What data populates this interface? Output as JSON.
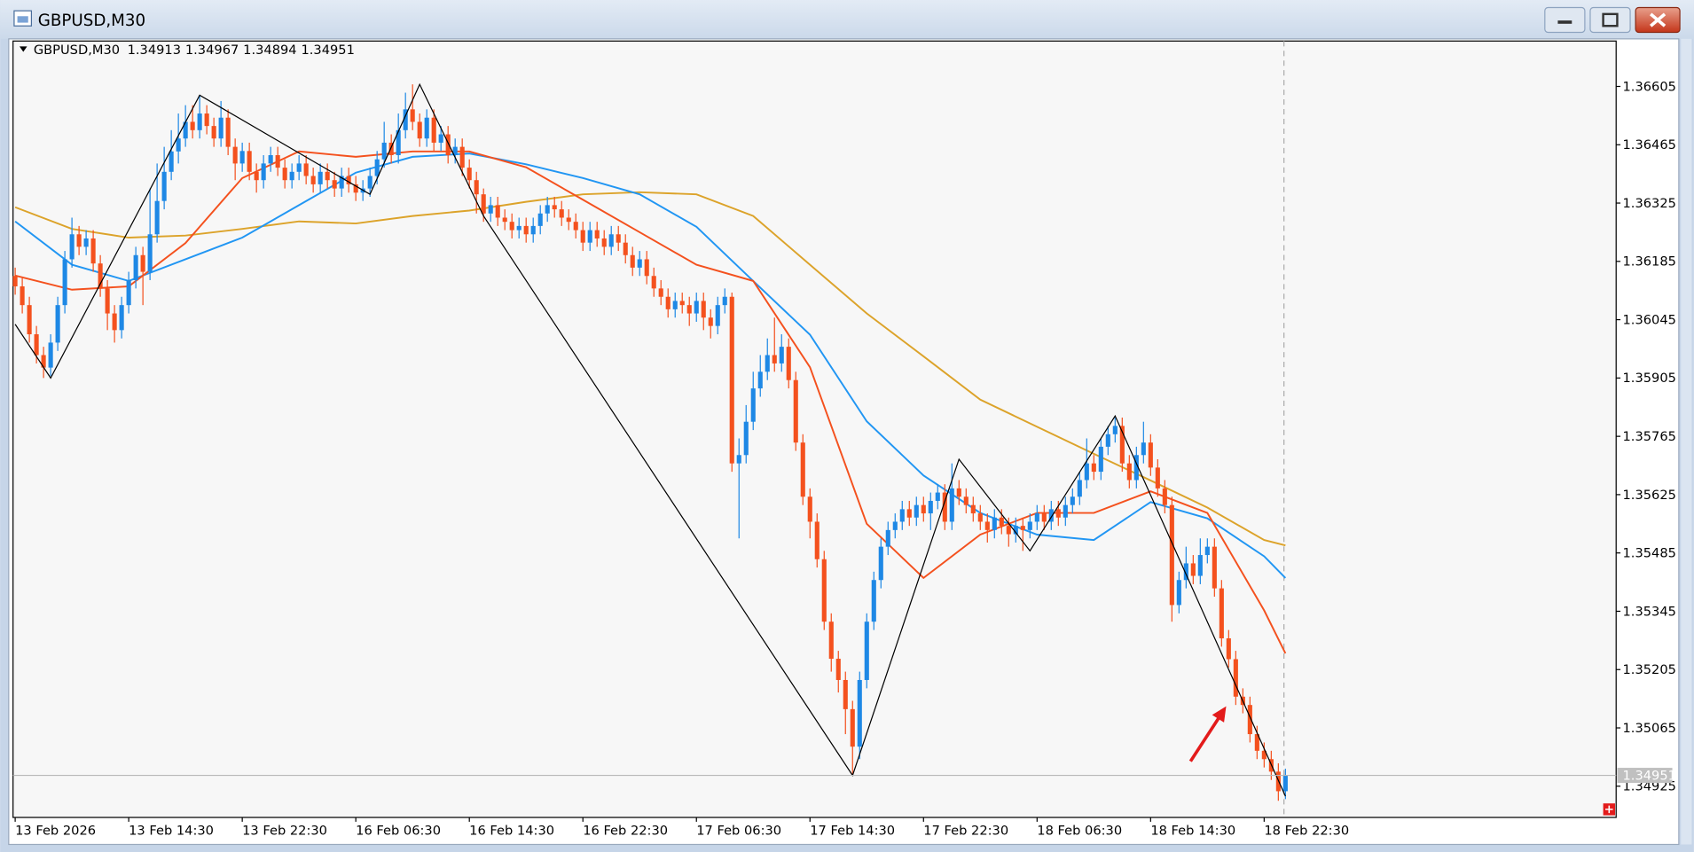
{
  "chart_data": {
    "type": "candlestick",
    "title": "GBPUSD,M30",
    "up_color": "#1e88e5",
    "down_color": "#f4511e",
    "xlim": [
      -0.3,
      225.6
    ],
    "ylim": [
      1.3485,
      1.36714
    ],
    "xticks": [
      {
        "value": 0,
        "label": "13 Feb 2026"
      },
      {
        "value": 16,
        "label": "13 Feb 14:30"
      },
      {
        "value": 32,
        "label": "13 Feb 22:30"
      },
      {
        "value": 48,
        "label": "16 Feb 06:30"
      },
      {
        "value": 64,
        "label": "16 Feb 14:30"
      },
      {
        "value": 80,
        "label": "16 Feb 22:30"
      },
      {
        "value": 96,
        "label": "17 Feb 06:30"
      },
      {
        "value": 112,
        "label": "17 Feb 14:30"
      },
      {
        "value": 128,
        "label": "17 Feb 22:30"
      },
      {
        "value": 144,
        "label": "18 Feb 06:30"
      },
      {
        "value": 160,
        "label": "18 Feb 14:30"
      },
      {
        "value": 176,
        "label": "18 Feb 22:30"
      }
    ],
    "yticks": [
      1.36605,
      1.36465,
      1.36325,
      1.36185,
      1.36045,
      1.35905,
      1.35765,
      1.35625,
      1.35485,
      1.35345,
      1.35205,
      1.35065,
      1.34925
    ],
    "candles": {
      "open": [
        1.3615,
        1.36125,
        1.3608,
        1.3601,
        1.3596,
        1.3593,
        1.3599,
        1.3608,
        1.3619,
        1.3625,
        1.3622,
        1.3624,
        1.3618,
        1.3612,
        1.3606,
        1.3602,
        1.3608,
        1.3614,
        1.362,
        1.3616,
        1.3625,
        1.3633,
        1.364,
        1.36449,
        1.3648,
        1.3652,
        1.365,
        1.3654,
        1.3651,
        1.3648,
        1.3653,
        1.3646,
        1.3642,
        1.3645,
        1.364,
        1.3638,
        1.3642,
        1.3644,
        1.3641,
        1.3638,
        1.364,
        1.3642,
        1.3639,
        1.3637,
        1.364,
        1.3638,
        1.3636,
        1.3639,
        1.3637,
        1.3635,
        1.3636,
        1.3639,
        1.3643,
        1.3647,
        1.3644,
        1.365,
        1.3655,
        1.3652,
        1.3648,
        1.3653,
        1.3647,
        1.3649,
        1.3644,
        1.3646,
        1.3641,
        1.3638,
        1.36346,
        1.363,
        1.3632,
        1.3629,
        1.3628,
        1.3626,
        1.3627,
        1.3625,
        1.3627,
        1.363,
        1.3632,
        1.3631,
        1.3629,
        1.3628,
        1.3626,
        1.3623,
        1.3626,
        1.3624,
        1.3622,
        1.3625,
        1.3623,
        1.362,
        1.3617,
        1.3619,
        1.3615,
        1.3612,
        1.361,
        1.3607,
        1.3609,
        1.3608,
        1.3606,
        1.3609,
        1.3605,
        1.3603,
        1.3608,
        1.361,
        1.357,
        1.3572,
        1.358,
        1.3588,
        1.3592,
        1.3596,
        1.3594,
        1.3598,
        1.359,
        1.3575,
        1.3562,
        1.3556,
        1.3547,
        1.3532,
        1.35231,
        1.3518,
        1.3511,
        1.3502,
        1.3518,
        1.3532,
        1.3542,
        1.355,
        1.3554,
        1.3556,
        1.3559,
        1.3557,
        1.356,
        1.3558,
        1.3561,
        1.3563,
        1.3556,
        1.3564,
        1.3562,
        1.356,
        1.3558,
        1.3556,
        1.3554,
        1.3557,
        1.3555,
        1.3553,
        1.3555,
        1.3554,
        1.3556,
        1.3558,
        1.3556,
        1.3559,
        1.3557,
        1.356,
        1.3562,
        1.3566,
        1.357,
        1.3568,
        1.3574,
        1.3577,
        1.3579,
        1.357,
        1.3566,
        1.3572,
        1.3575,
        1.3569,
        1.3564,
        1.356,
        1.3536,
        1.3542,
        1.3546,
        1.3543,
        1.3548,
        1.355,
        1.354,
        1.3528,
        1.3523,
        1.3514,
        1.3512,
        1.3505,
        1.3501,
        1.3499,
        1.3496,
        1.34913
      ],
      "high": [
        1.3617,
        1.36145,
        1.361,
        1.3603,
        1.3598,
        1.3601,
        1.361,
        1.3621,
        1.3629,
        1.3627,
        1.3626,
        1.3626,
        1.362,
        1.3614,
        1.3608,
        1.361,
        1.3616,
        1.3622,
        1.3622,
        1.3636,
        1.3642,
        1.3646,
        1.365,
        1.3654,
        1.3656,
        1.3656,
        1.36584,
        1.3656,
        1.3653,
        1.3657,
        1.3655,
        1.3648,
        1.3647,
        1.3647,
        1.3642,
        1.3644,
        1.3646,
        1.3646,
        1.3643,
        1.3642,
        1.3644,
        1.3644,
        1.3641,
        1.3642,
        1.3642,
        1.364,
        1.3641,
        1.3641,
        1.3639,
        1.3638,
        1.3641,
        1.3645,
        1.3652,
        1.3649,
        1.3654,
        1.3659,
        1.3661,
        1.3654,
        1.3655,
        1.3655,
        1.3651,
        1.3651,
        1.3648,
        1.3648,
        1.3643,
        1.364,
        1.3636,
        1.3634,
        1.3634,
        1.3631,
        1.363,
        1.3629,
        1.3629,
        1.3629,
        1.3632,
        1.3634,
        1.3634,
        1.3633,
        1.3631,
        1.363,
        1.3628,
        1.3628,
        1.3628,
        1.3626,
        1.3627,
        1.3627,
        1.3625,
        1.3622,
        1.3621,
        1.3621,
        1.3617,
        1.3614,
        1.3612,
        1.3611,
        1.3611,
        1.361,
        1.3611,
        1.3611,
        1.3607,
        1.361,
        1.3612,
        1.3611,
        1.3576,
        1.3584,
        1.3592,
        1.3596,
        1.36,
        1.3605,
        1.3601,
        1.36,
        1.3592,
        1.3577,
        1.3564,
        1.3558,
        1.3549,
        1.3534,
        1.3525,
        1.352,
        1.3513,
        1.352,
        1.3534,
        1.3544,
        1.3552,
        1.3556,
        1.3558,
        1.3561,
        1.3561,
        1.3562,
        1.3562,
        1.3563,
        1.3565,
        1.3565,
        1.357,
        1.3566,
        1.3564,
        1.3562,
        1.356,
        1.3558,
        1.3559,
        1.3559,
        1.3557,
        1.3557,
        1.3557,
        1.3558,
        1.356,
        1.356,
        1.3561,
        1.3561,
        1.3562,
        1.3564,
        1.3568,
        1.3576,
        1.3572,
        1.3576,
        1.3579,
        1.3581,
        1.3581,
        1.3572,
        1.3574,
        1.358,
        1.3577,
        1.3571,
        1.3566,
        1.3562,
        1.3544,
        1.355,
        1.3548,
        1.3552,
        1.3552,
        1.3552,
        1.3542,
        1.353,
        1.3525,
        1.3516,
        1.3514,
        1.3507,
        1.3503,
        1.3501,
        1.3498,
        1.34967
      ],
      "low": [
        1.36105,
        1.3606,
        1.3599,
        1.3594,
        1.35905,
        1.3591,
        1.3597,
        1.3606,
        1.3617,
        1.362,
        1.362,
        1.3616,
        1.361,
        1.3602,
        1.3599,
        1.36,
        1.3606,
        1.3612,
        1.3608,
        1.3614,
        1.3623,
        1.3631,
        1.3638,
        1.3642,
        1.3646,
        1.3648,
        1.3648,
        1.3649,
        1.3646,
        1.3646,
        1.3644,
        1.3638,
        1.364,
        1.3638,
        1.3635,
        1.3636,
        1.364,
        1.3639,
        1.3636,
        1.3636,
        1.3638,
        1.3637,
        1.3635,
        1.3635,
        1.3636,
        1.3634,
        1.3634,
        1.3635,
        1.3633,
        1.3633,
        1.3634,
        1.3637,
        1.3641,
        1.3642,
        1.3642,
        1.3648,
        1.365,
        1.3646,
        1.3646,
        1.3645,
        1.3645,
        1.3642,
        1.3642,
        1.3639,
        1.3636,
        1.363,
        1.3628,
        1.3628,
        1.3627,
        1.3626,
        1.3624,
        1.3624,
        1.3623,
        1.3623,
        1.3625,
        1.3628,
        1.3629,
        1.3627,
        1.3626,
        1.3624,
        1.3621,
        1.3621,
        1.3622,
        1.362,
        1.362,
        1.3621,
        1.3618,
        1.3615,
        1.3615,
        1.3613,
        1.361,
        1.3608,
        1.3605,
        1.3605,
        1.3606,
        1.3603,
        1.3604,
        1.3602,
        1.36,
        1.3601,
        1.3606,
        1.3568,
        1.3552,
        1.357,
        1.3578,
        1.3586,
        1.359,
        1.3592,
        1.3592,
        1.3588,
        1.3573,
        1.356,
        1.3552,
        1.3545,
        1.353,
        1.352,
        1.3515,
        1.3505,
        1.3495,
        1.3499,
        1.3516,
        1.353,
        1.354,
        1.3548,
        1.3552,
        1.3554,
        1.3555,
        1.3555,
        1.3556,
        1.3554,
        1.3559,
        1.3554,
        1.3554,
        1.356,
        1.3558,
        1.3556,
        1.3554,
        1.3551,
        1.3552,
        1.3553,
        1.355,
        1.3551,
        1.3549,
        1.3552,
        1.3554,
        1.3554,
        1.3554,
        1.3555,
        1.3555,
        1.3558,
        1.356,
        1.3564,
        1.3566,
        1.3566,
        1.3572,
        1.3575,
        1.3568,
        1.3564,
        1.3564,
        1.357,
        1.3567,
        1.3562,
        1.3558,
        1.3532,
        1.3534,
        1.354,
        1.3541,
        1.3541,
        1.3546,
        1.3538,
        1.3526,
        1.3521,
        1.3512,
        1.351,
        1.3503,
        1.3499,
        1.3497,
        1.3494,
        1.3489,
        1.34894
      ],
      "close": [
        1.36125,
        1.3608,
        1.3601,
        1.3596,
        1.3593,
        1.3599,
        1.3608,
        1.3619,
        1.3625,
        1.3622,
        1.3624,
        1.3618,
        1.3612,
        1.3606,
        1.3602,
        1.3608,
        1.3614,
        1.362,
        1.3616,
        1.3625,
        1.3633,
        1.364,
        1.36449,
        1.3648,
        1.3652,
        1.365,
        1.3654,
        1.3651,
        1.3648,
        1.3653,
        1.3646,
        1.3642,
        1.3645,
        1.364,
        1.3638,
        1.3642,
        1.3644,
        1.3641,
        1.3638,
        1.364,
        1.3642,
        1.3639,
        1.3637,
        1.364,
        1.3638,
        1.3636,
        1.3639,
        1.3637,
        1.3635,
        1.3636,
        1.3639,
        1.3643,
        1.3647,
        1.3644,
        1.365,
        1.3655,
        1.3652,
        1.3648,
        1.3653,
        1.3647,
        1.3649,
        1.3644,
        1.3646,
        1.3641,
        1.3638,
        1.36346,
        1.363,
        1.3632,
        1.3629,
        1.3628,
        1.3626,
        1.3627,
        1.3625,
        1.3627,
        1.363,
        1.3632,
        1.3631,
        1.3629,
        1.3628,
        1.3626,
        1.3623,
        1.3626,
        1.3624,
        1.3622,
        1.3625,
        1.3623,
        1.362,
        1.3617,
        1.3619,
        1.3615,
        1.3612,
        1.361,
        1.3607,
        1.3609,
        1.3608,
        1.3606,
        1.3609,
        1.3605,
        1.3603,
        1.3608,
        1.361,
        1.357,
        1.3572,
        1.358,
        1.3588,
        1.3592,
        1.3596,
        1.3594,
        1.3598,
        1.359,
        1.3575,
        1.3562,
        1.3556,
        1.3547,
        1.3532,
        1.35231,
        1.3518,
        1.3511,
        1.3502,
        1.3518,
        1.3532,
        1.3542,
        1.355,
        1.3554,
        1.3556,
        1.3559,
        1.3557,
        1.356,
        1.3558,
        1.3561,
        1.3563,
        1.3556,
        1.3564,
        1.3562,
        1.356,
        1.3558,
        1.3556,
        1.3554,
        1.3557,
        1.3555,
        1.3553,
        1.3555,
        1.3554,
        1.3556,
        1.3558,
        1.3556,
        1.3559,
        1.3557,
        1.356,
        1.3562,
        1.3566,
        1.357,
        1.3568,
        1.3574,
        1.3577,
        1.3579,
        1.357,
        1.3566,
        1.3572,
        1.3575,
        1.3569,
        1.3564,
        1.356,
        1.3536,
        1.3542,
        1.3546,
        1.3543,
        1.3548,
        1.355,
        1.354,
        1.3528,
        1.3523,
        1.3514,
        1.3512,
        1.3505,
        1.3501,
        1.3499,
        1.3496,
        1.34913,
        1.34951
      ]
    },
    "ma": [
      {
        "color": "#f4511e",
        "x": [
          0,
          8,
          16,
          24,
          32,
          40,
          48,
          56,
          64,
          72,
          80,
          88,
          96,
          104,
          112,
          120,
          128,
          136,
          144,
          152,
          160,
          168,
          176,
          179
        ],
        "values": [
          1.36151,
          1.36117,
          1.36125,
          1.36229,
          1.36385,
          1.36449,
          1.36436,
          1.36449,
          1.36449,
          1.36411,
          1.36333,
          1.36255,
          1.36177,
          1.36138,
          1.35931,
          1.35555,
          1.35425,
          1.35529,
          1.35581,
          1.35581,
          1.35633,
          1.35581,
          1.35347,
          1.35244
        ]
      },
      {
        "color": "#2196f3",
        "x": [
          0,
          8,
          16,
          24,
          32,
          40,
          48,
          56,
          64,
          72,
          80,
          88,
          96,
          104,
          112,
          120,
          128,
          136,
          144,
          152,
          160,
          168,
          176,
          179
        ],
        "values": [
          1.36281,
          1.36177,
          1.36138,
          1.3619,
          1.36242,
          1.3632,
          1.36398,
          1.36436,
          1.36444,
          1.36418,
          1.36385,
          1.36346,
          1.36268,
          1.36138,
          1.36009,
          1.35801,
          1.35671,
          1.35581,
          1.35529,
          1.35516,
          1.35607,
          1.35568,
          1.35477,
          1.35425
        ]
      },
      {
        "color": "#dca32a",
        "x": [
          0,
          8,
          16,
          24,
          32,
          40,
          48,
          56,
          64,
          72,
          80,
          88,
          96,
          104,
          112,
          120,
          128,
          136,
          144,
          152,
          160,
          168,
          176,
          179
        ],
        "values": [
          1.36315,
          1.36263,
          1.36242,
          1.36247,
          1.36263,
          1.36281,
          1.36276,
          1.36294,
          1.36307,
          1.36328,
          1.36346,
          1.36351,
          1.36346,
          1.36294,
          1.36177,
          1.3606,
          1.35957,
          1.35853,
          1.35788,
          1.35723,
          1.35659,
          1.35594,
          1.35516,
          1.35503
        ]
      }
    ],
    "zigzag": {
      "color": "#000000",
      "x": [
        0,
        5,
        26,
        50,
        57,
        66,
        118,
        133,
        143,
        155,
        179
      ],
      "values": [
        1.36034,
        1.35905,
        1.36584,
        1.36346,
        1.3661,
        1.36294,
        1.34951,
        1.3571,
        1.3549,
        1.35814,
        1.34901
      ]
    }
  }
}
